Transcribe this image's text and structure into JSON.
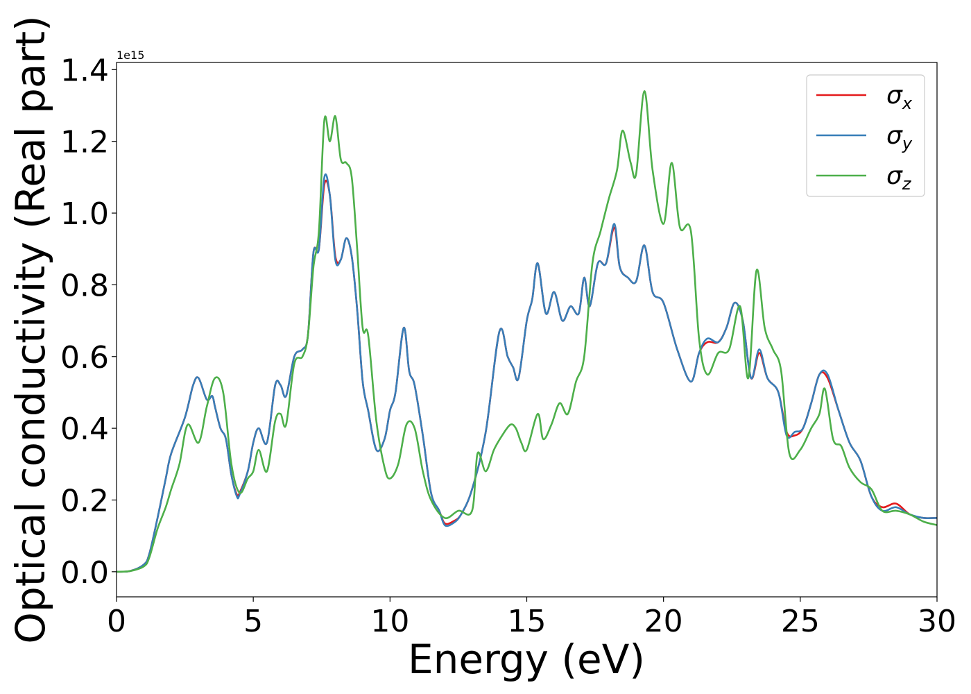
{
  "chart_data": {
    "type": "line",
    "xlabel": "Energy (eV)",
    "ylabel": "Optical conductivity (Real part)",
    "y_offset_text": "1e15",
    "xlim": [
      0,
      30
    ],
    "ylim": [
      -0.07,
      1.42
    ],
    "xticks": [
      0,
      5,
      10,
      15,
      20,
      25,
      30
    ],
    "yticks": [
      0.0,
      0.2,
      0.4,
      0.6,
      0.8,
      1.0,
      1.2,
      1.4
    ],
    "xtick_labels": [
      "0",
      "5",
      "10",
      "15",
      "20",
      "25",
      "30"
    ],
    "ytick_labels": [
      "0.0",
      "0.2",
      "0.4",
      "0.6",
      "0.8",
      "1.0",
      "1.2",
      "1.4"
    ],
    "grid": false,
    "legend_position": "top-right",
    "legend": [
      {
        "symbol": "σ",
        "sub": "x",
        "color": "#e41a1c"
      },
      {
        "symbol": "σ",
        "sub": "y",
        "color": "#377eb8"
      },
      {
        "symbol": "σ",
        "sub": "z",
        "color": "#4daf4a"
      }
    ],
    "series": [
      {
        "name": "σx",
        "color": "#e41a1c",
        "x": [
          0,
          0.5,
          1.0,
          1.2,
          1.5,
          1.8,
          2.0,
          2.5,
          2.8,
          3.0,
          3.3,
          3.5,
          3.6,
          3.8,
          4.0,
          4.2,
          4.4,
          4.5,
          4.8,
          5.0,
          5.2,
          5.5,
          5.8,
          6.0,
          6.2,
          6.5,
          6.8,
          7.0,
          7.2,
          7.4,
          7.6,
          7.8,
          8.0,
          8.2,
          8.4,
          8.6,
          8.8,
          9.0,
          9.2,
          9.5,
          9.8,
          10.0,
          10.2,
          10.5,
          10.7,
          10.9,
          11.2,
          11.5,
          11.8,
          12.0,
          12.3,
          12.6,
          13.0,
          13.5,
          14.0,
          14.3,
          14.5,
          14.7,
          15.0,
          15.2,
          15.4,
          15.7,
          16.0,
          16.3,
          16.6,
          16.9,
          17.1,
          17.3,
          17.6,
          17.9,
          18.2,
          18.4,
          18.7,
          19.0,
          19.3,
          19.6,
          20.0,
          20.5,
          21.0,
          21.3,
          21.6,
          22.0,
          22.3,
          22.6,
          22.9,
          23.2,
          23.5,
          23.8,
          24.2,
          24.5,
          24.8,
          25.1,
          25.4,
          25.7,
          26.0,
          26.4,
          26.8,
          27.2,
          27.6,
          28.0,
          28.5,
          29.0,
          29.5,
          30.0
        ],
        "values": [
          0,
          0.002,
          0.02,
          0.05,
          0.15,
          0.26,
          0.33,
          0.43,
          0.52,
          0.54,
          0.48,
          0.49,
          0.46,
          0.4,
          0.37,
          0.27,
          0.215,
          0.22,
          0.28,
          0.36,
          0.4,
          0.36,
          0.52,
          0.52,
          0.49,
          0.6,
          0.62,
          0.66,
          0.89,
          0.9,
          1.08,
          1.05,
          0.88,
          0.87,
          0.93,
          0.88,
          0.73,
          0.53,
          0.45,
          0.34,
          0.37,
          0.45,
          0.5,
          0.68,
          0.56,
          0.52,
          0.38,
          0.22,
          0.17,
          0.135,
          0.14,
          0.16,
          0.23,
          0.39,
          0.67,
          0.6,
          0.57,
          0.54,
          0.7,
          0.76,
          0.86,
          0.72,
          0.78,
          0.7,
          0.74,
          0.72,
          0.82,
          0.74,
          0.86,
          0.86,
          0.96,
          0.85,
          0.82,
          0.81,
          0.91,
          0.78,
          0.75,
          0.62,
          0.53,
          0.61,
          0.64,
          0.64,
          0.68,
          0.75,
          0.7,
          0.54,
          0.61,
          0.54,
          0.5,
          0.39,
          0.38,
          0.4,
          0.47,
          0.55,
          0.54,
          0.45,
          0.36,
          0.31,
          0.21,
          0.18,
          0.19,
          0.16,
          0.15,
          0.15
        ]
      },
      {
        "name": "σy",
        "color": "#377eb8",
        "x": [
          0,
          0.5,
          1.0,
          1.2,
          1.5,
          1.8,
          2.0,
          2.5,
          2.8,
          3.0,
          3.3,
          3.5,
          3.6,
          3.8,
          4.0,
          4.2,
          4.4,
          4.5,
          4.8,
          5.0,
          5.2,
          5.5,
          5.8,
          6.0,
          6.2,
          6.5,
          6.8,
          7.0,
          7.2,
          7.4,
          7.6,
          7.8,
          8.0,
          8.2,
          8.4,
          8.6,
          8.8,
          9.0,
          9.2,
          9.5,
          9.8,
          10.0,
          10.2,
          10.5,
          10.7,
          10.9,
          11.2,
          11.5,
          11.8,
          12.0,
          12.3,
          12.6,
          13.0,
          13.5,
          14.0,
          14.3,
          14.5,
          14.7,
          15.0,
          15.2,
          15.4,
          15.7,
          16.0,
          16.3,
          16.6,
          16.9,
          17.1,
          17.3,
          17.6,
          17.9,
          18.2,
          18.4,
          18.7,
          19.0,
          19.3,
          19.6,
          20.0,
          20.5,
          21.0,
          21.3,
          21.6,
          22.0,
          22.3,
          22.6,
          22.9,
          23.2,
          23.5,
          23.8,
          24.2,
          24.5,
          24.8,
          25.1,
          25.4,
          25.7,
          26.0,
          26.4,
          26.8,
          27.2,
          27.6,
          28.0,
          28.5,
          29.0,
          29.5,
          30.0
        ],
        "values": [
          0,
          0.002,
          0.02,
          0.05,
          0.15,
          0.26,
          0.33,
          0.43,
          0.52,
          0.54,
          0.48,
          0.49,
          0.46,
          0.4,
          0.37,
          0.27,
          0.21,
          0.215,
          0.28,
          0.36,
          0.4,
          0.36,
          0.52,
          0.52,
          0.49,
          0.6,
          0.62,
          0.66,
          0.89,
          0.9,
          1.1,
          1.05,
          0.87,
          0.87,
          0.93,
          0.88,
          0.73,
          0.53,
          0.45,
          0.34,
          0.37,
          0.45,
          0.5,
          0.68,
          0.56,
          0.52,
          0.38,
          0.22,
          0.17,
          0.13,
          0.135,
          0.16,
          0.23,
          0.39,
          0.67,
          0.6,
          0.57,
          0.54,
          0.7,
          0.76,
          0.86,
          0.72,
          0.78,
          0.7,
          0.74,
          0.72,
          0.82,
          0.74,
          0.86,
          0.86,
          0.97,
          0.85,
          0.82,
          0.81,
          0.91,
          0.78,
          0.75,
          0.62,
          0.53,
          0.61,
          0.65,
          0.64,
          0.68,
          0.75,
          0.7,
          0.54,
          0.62,
          0.54,
          0.5,
          0.38,
          0.39,
          0.4,
          0.47,
          0.55,
          0.55,
          0.45,
          0.36,
          0.31,
          0.21,
          0.17,
          0.18,
          0.16,
          0.15,
          0.15
        ]
      },
      {
        "name": "σz",
        "color": "#4daf4a",
        "x": [
          0,
          0.5,
          1.0,
          1.2,
          1.5,
          1.8,
          2.0,
          2.3,
          2.6,
          3.0,
          3.3,
          3.6,
          3.9,
          4.2,
          4.5,
          4.8,
          5.0,
          5.2,
          5.5,
          5.8,
          6.0,
          6.2,
          6.5,
          6.8,
          7.0,
          7.2,
          7.4,
          7.6,
          7.8,
          8.0,
          8.2,
          8.4,
          8.6,
          8.8,
          9.0,
          9.2,
          9.5,
          9.8,
          10.0,
          10.3,
          10.6,
          10.9,
          11.2,
          11.5,
          12.0,
          12.5,
          13.0,
          13.2,
          13.5,
          13.8,
          14.1,
          14.4,
          14.6,
          14.8,
          15.0,
          15.4,
          15.6,
          15.9,
          16.2,
          16.5,
          16.8,
          17.1,
          17.4,
          17.7,
          18.0,
          18.3,
          18.5,
          18.8,
          19.0,
          19.3,
          19.6,
          20.0,
          20.3,
          20.6,
          21.0,
          21.3,
          21.6,
          22.0,
          22.4,
          22.8,
          23.1,
          23.4,
          23.7,
          24.0,
          24.3,
          24.6,
          25.0,
          25.4,
          25.7,
          25.9,
          26.2,
          26.5,
          26.8,
          27.2,
          27.6,
          28.0,
          28.5,
          29.0,
          29.5,
          30.0
        ],
        "values": [
          0,
          0.002,
          0.015,
          0.04,
          0.12,
          0.18,
          0.23,
          0.3,
          0.41,
          0.36,
          0.46,
          0.54,
          0.5,
          0.3,
          0.22,
          0.26,
          0.28,
          0.34,
          0.28,
          0.42,
          0.44,
          0.41,
          0.58,
          0.6,
          0.66,
          0.85,
          0.95,
          1.26,
          1.2,
          1.27,
          1.15,
          1.14,
          1.1,
          0.9,
          0.68,
          0.66,
          0.42,
          0.29,
          0.26,
          0.3,
          0.41,
          0.4,
          0.28,
          0.2,
          0.15,
          0.17,
          0.17,
          0.33,
          0.28,
          0.34,
          0.38,
          0.41,
          0.4,
          0.36,
          0.34,
          0.44,
          0.37,
          0.41,
          0.47,
          0.44,
          0.53,
          0.6,
          0.86,
          0.95,
          1.04,
          1.12,
          1.23,
          1.14,
          1.11,
          1.34,
          1.12,
          0.97,
          1.14,
          0.96,
          0.95,
          0.65,
          0.55,
          0.61,
          0.62,
          0.74,
          0.54,
          0.84,
          0.68,
          0.62,
          0.56,
          0.33,
          0.34,
          0.4,
          0.44,
          0.51,
          0.37,
          0.35,
          0.29,
          0.25,
          0.23,
          0.17,
          0.17,
          0.16,
          0.14,
          0.13
        ]
      }
    ]
  }
}
